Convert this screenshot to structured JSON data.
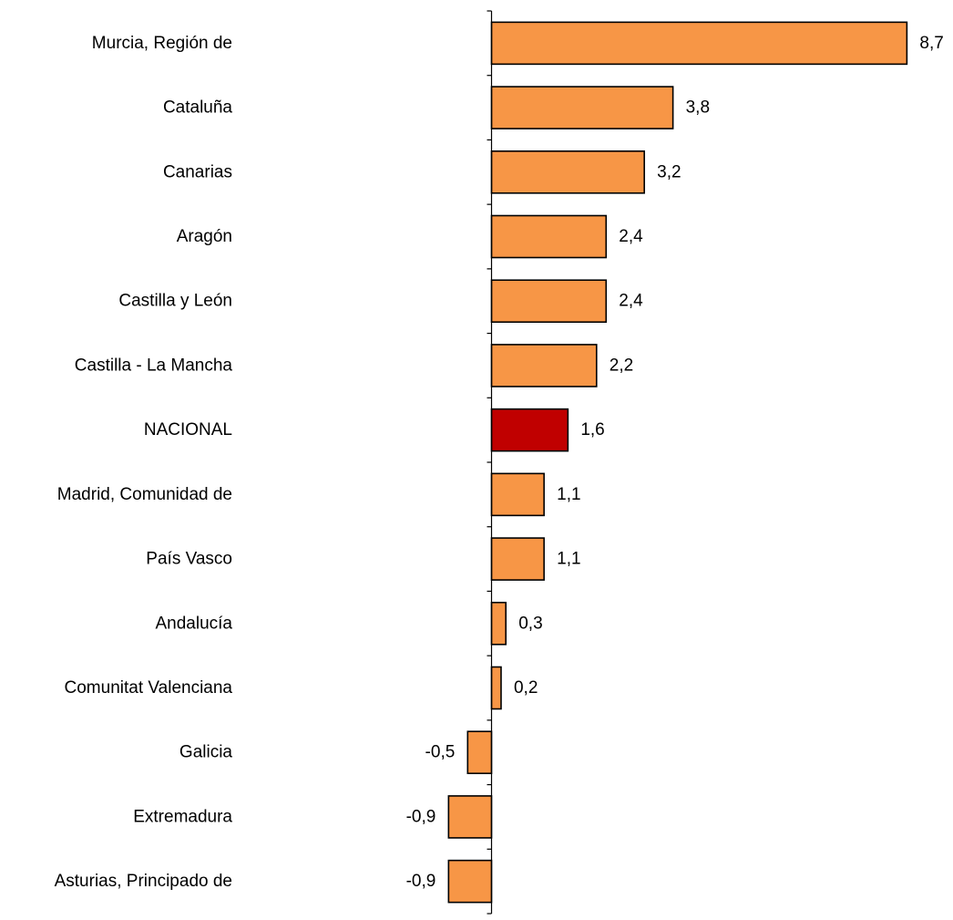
{
  "chart_data": {
    "type": "bar",
    "orientation": "horizontal",
    "title": "",
    "xlabel": "",
    "ylabel": "",
    "decimal_separator": ",",
    "categories": [
      "Murcia, Región de",
      "Cataluña",
      "Canarias",
      "Aragón",
      "Castilla y León",
      "Castilla - La Mancha",
      "NACIONAL",
      "Madrid, Comunidad de",
      "País Vasco",
      "Andalucía",
      "Comunitat Valenciana",
      "Galicia",
      "Extremadura",
      "Asturias, Principado de"
    ],
    "values": [
      8.7,
      3.8,
      3.2,
      2.4,
      2.4,
      2.2,
      1.6,
      1.1,
      1.1,
      0.3,
      0.2,
      -0.5,
      -0.9,
      -0.9
    ],
    "value_labels": [
      "8,7",
      "3,8",
      "3,2",
      "2,4",
      "2,4",
      "2,2",
      "1,6",
      "1,1",
      "1,1",
      "0,3",
      "0,2",
      "-0,5",
      "-0,9",
      "-0,9"
    ],
    "highlight_category": "NACIONAL",
    "colors": {
      "bar": "#f79646",
      "highlight": "#c00000",
      "stroke": "#000000",
      "axis": "#000000"
    },
    "xlim": [
      -0.9,
      8.7
    ],
    "grid": false,
    "legend": "none"
  }
}
